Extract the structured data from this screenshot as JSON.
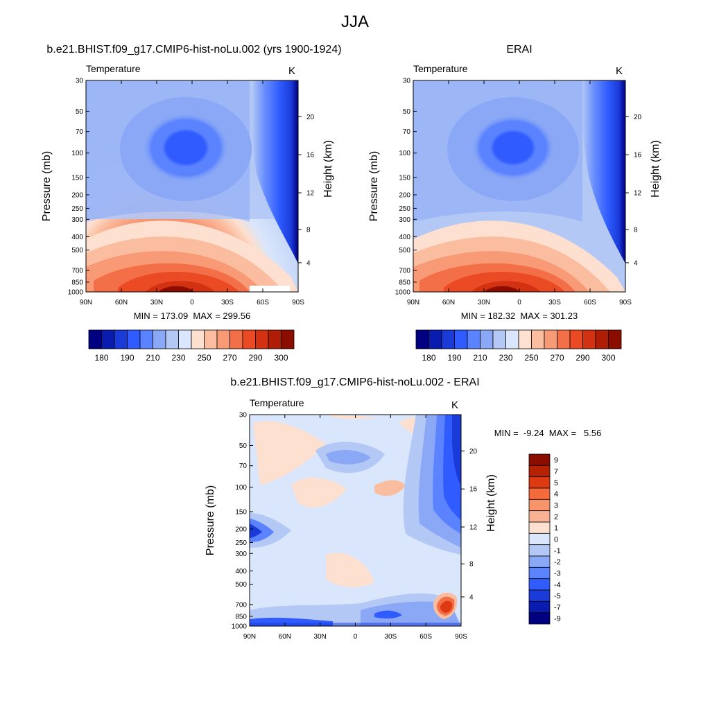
{
  "figure": {
    "title": "JJA"
  },
  "panels": {
    "model": {
      "title": "b.e21.BHIST.f09_g17.CMIP6-hist-noLu.002 (yrs 1900-1924)",
      "variable": "Temperature",
      "units": "K",
      "minmax": "MIN = 173.09  MAX = 299.56"
    },
    "obs": {
      "title": "ERAI",
      "variable": "Temperature",
      "units": "K",
      "minmax": "MIN = 182.32  MAX = 301.23"
    },
    "diff": {
      "title": "b.e21.BHIST.f09_g17.CMIP6-hist-noLu.002 - ERAI",
      "variable": "Temperature",
      "units": "K",
      "minmax": "MIN =  -9.24  MAX =   5.56"
    }
  },
  "chart_data": [
    {
      "type": "heatmap",
      "name_ref": "panels.model",
      "xlabel": "",
      "ylabel": "Pressure (mb)",
      "y2label": "Height (km)",
      "x_ticks": [
        "90N",
        "60N",
        "30N",
        "0",
        "30S",
        "60S",
        "90S"
      ],
      "x_values": [
        90,
        60,
        30,
        0,
        -30,
        -60,
        -90
      ],
      "y_ticks": [
        30,
        50,
        70,
        100,
        150,
        200,
        250,
        300,
        400,
        500,
        700,
        850,
        1000
      ],
      "y2_ticks": [
        4,
        8,
        12,
        16,
        20
      ],
      "xlim": [
        90,
        -90
      ],
      "ylim": [
        1000,
        30
      ],
      "y_scale": "log",
      "min": 173.09,
      "max": 299.56
    },
    {
      "type": "heatmap",
      "name_ref": "panels.obs",
      "xlabel": "",
      "ylabel": "Pressure (mb)",
      "y2label": "Height (km)",
      "x_ticks": [
        "90N",
        "60N",
        "30N",
        "0",
        "30S",
        "60S",
        "90S"
      ],
      "x_values": [
        90,
        60,
        30,
        0,
        -30,
        -60,
        -90
      ],
      "y_ticks": [
        30,
        50,
        70,
        100,
        150,
        200,
        250,
        300,
        400,
        500,
        700,
        850,
        1000
      ],
      "y2_ticks": [
        4,
        8,
        12,
        16,
        20
      ],
      "xlim": [
        90,
        -90
      ],
      "ylim": [
        1000,
        30
      ],
      "y_scale": "log",
      "min": 182.32,
      "max": 301.23
    },
    {
      "type": "heatmap",
      "name_ref": "panels.diff",
      "xlabel": "",
      "ylabel": "Pressure (mb)",
      "y2label": "Height (km)",
      "x_ticks": [
        "90N",
        "60N",
        "30N",
        "0",
        "30S",
        "60S",
        "90S"
      ],
      "x_values": [
        90,
        60,
        30,
        0,
        -30,
        -60,
        -90
      ],
      "y_ticks": [
        30,
        50,
        70,
        100,
        150,
        200,
        250,
        300,
        400,
        500,
        700,
        850,
        1000
      ],
      "y2_ticks": [
        4,
        8,
        12,
        16,
        20
      ],
      "xlim": [
        90,
        -90
      ],
      "ylim": [
        1000,
        30
      ],
      "y_scale": "log",
      "min": -9.24,
      "max": 5.56
    }
  ],
  "colorbars": {
    "absolute": {
      "orientation": "horizontal",
      "colors": [
        "#000080",
        "#0a1cb0",
        "#1a3bd8",
        "#2f5bff",
        "#5b83ff",
        "#8aa8f5",
        "#b3c8f5",
        "#d9e6fb",
        "#fde0cf",
        "#fbbd9f",
        "#f89a76",
        "#f36f48",
        "#ea4a24",
        "#d33212",
        "#b01d06",
        "#8a0d00"
      ],
      "labels": [
        "180",
        "190",
        "210",
        "230",
        "250",
        "270",
        "290",
        "300"
      ]
    },
    "diff": {
      "orientation": "vertical",
      "colors": [
        "#8a0d00",
        "#b52204",
        "#dd3a12",
        "#f36a3c",
        "#f7946a",
        "#f9b294",
        "#fde0cf",
        "#d9e6fb",
        "#b3c8f5",
        "#8aa8f5",
        "#5b83ff",
        "#2f5bff",
        "#1a3bd8",
        "#0a1cb0",
        "#000080"
      ],
      "labels": [
        "9",
        "7",
        "5",
        "4",
        "3",
        "2",
        "1",
        "0",
        "-1",
        "-2",
        "-3",
        "-4",
        "-5",
        "-7",
        "-9"
      ]
    }
  }
}
